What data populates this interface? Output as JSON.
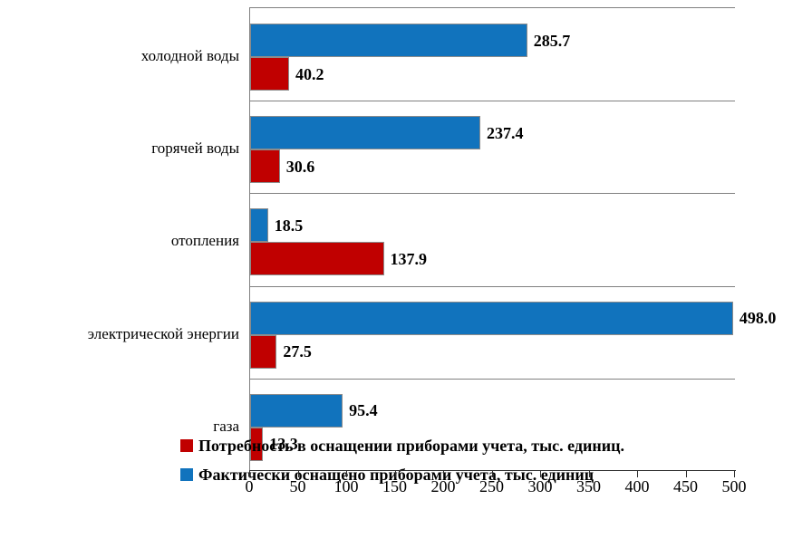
{
  "chart_data": {
    "type": "bar",
    "orientation": "horizontal",
    "title": "",
    "categories": [
      "холодной воды",
      "горячей воды",
      "отопления",
      "электрической энергии",
      "газа"
    ],
    "series": [
      {
        "name": "Фактически оснащено приборами учета, тыс. единиц",
        "color": "#1173BD",
        "values": [
          285.7,
          237.4,
          18.5,
          498.0,
          95.4
        ]
      },
      {
        "name": "Потребность в оснащении приборами учета, тыс. единиц.",
        "color": "#C00000",
        "values": [
          40.2,
          30.6,
          137.9,
          27.5,
          13.3
        ]
      }
    ],
    "value_labels": [
      [
        "285.7",
        "237.4",
        "18.5",
        "498.0",
        "95.4"
      ],
      [
        "40.2",
        "30.6",
        "137.9",
        "27.5",
        "13.3"
      ]
    ],
    "xlim": [
      0,
      500
    ],
    "x_ticks": [
      "0",
      "50",
      "100",
      "150",
      "200",
      "250",
      "300",
      "350",
      "400",
      "450",
      "500"
    ],
    "grid": "horizontal category separators only",
    "legend_position": "bottom, overlapping plot area"
  },
  "legend": {
    "items": [
      {
        "label": "Потребность в оснащении приборами учета, тыс. единиц.",
        "color": "#C00000"
      },
      {
        "label": "Фактически оснащено приборами учета, тыс. единиц",
        "color": "#1173BD"
      }
    ]
  },
  "colors": {
    "bar_actual": "#1173BD",
    "bar_need": "#C00000",
    "bar_border": "#8C8C8C",
    "gridline": "#808080",
    "axis": "#2B2B2B",
    "text": "#000000",
    "background": "#FFFFFF"
  }
}
